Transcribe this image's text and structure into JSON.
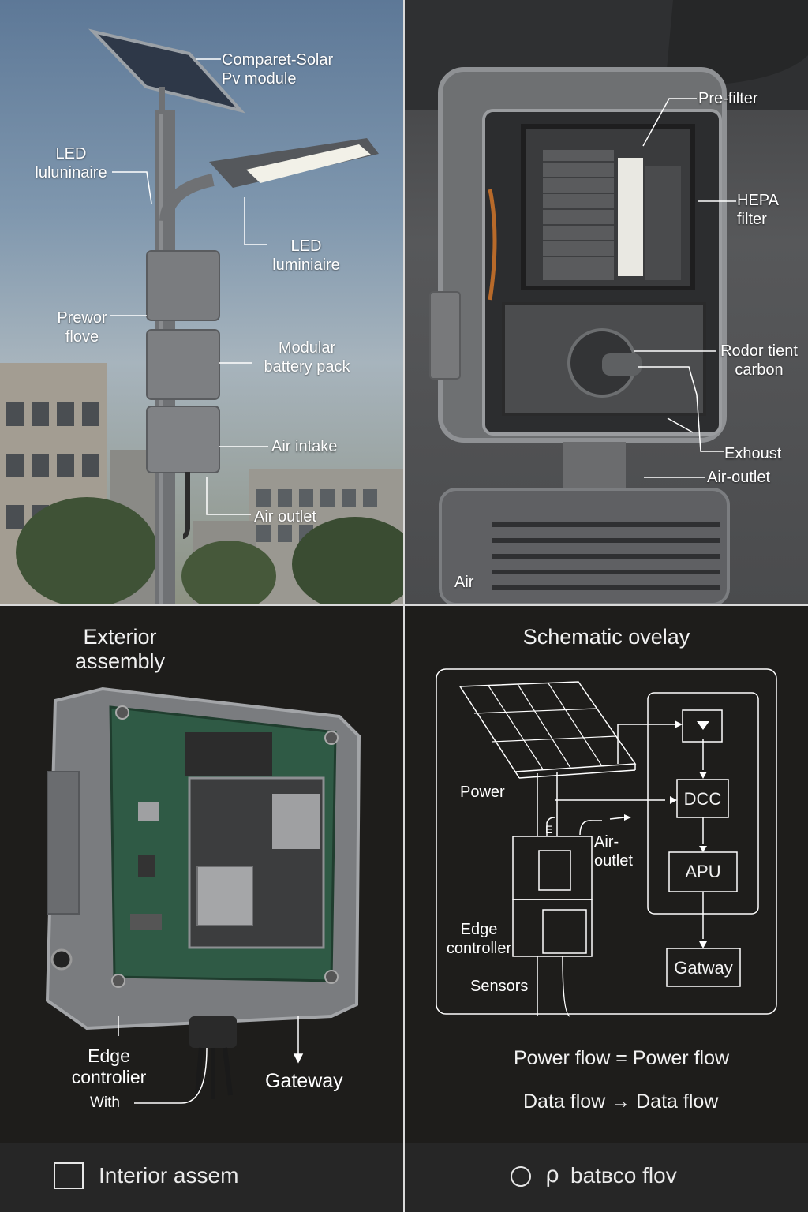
{
  "panel_street": {
    "labels": {
      "solar_pv": "Comparet-Solar\nPv module",
      "led_left": "LED\nluluninaire",
      "led_right": "LED\nluminiaire",
      "power_flow": "Prewor\nflove",
      "battery": "Modular\nbattery pack",
      "air_intake": "Air intake",
      "air_outlet": "Air outlet"
    }
  },
  "panel_interior": {
    "labels": {
      "pre_filter": "Pre-filter",
      "hepa": "HEPA\nfilter",
      "carbon": "Rodor tient\ncarbon",
      "exhaust": "Exhoust",
      "air_outlet": "Air-outlet",
      "air_cut": "Air"
    }
  },
  "panel_exterior": {
    "title": "Exterior\nassembly",
    "labels": {
      "edge_controller": "Edge\ncontrolier",
      "with": "With",
      "gateway": "Gateway"
    }
  },
  "panel_schematic": {
    "title": "Schematic ovelay",
    "labels": {
      "power": "Power",
      "air_outlet": "Air-\noutlet",
      "edge_controller": "Edge\ncontroller",
      "sensors": "Sensors",
      "e_mark": "E"
    },
    "boxes": {
      "dcc": "DCC",
      "apu": "APU",
      "gateway": "Gatway"
    },
    "legend": {
      "power_flow_left": "Power flow",
      "power_flow_right": "Power flow",
      "data_flow_left": "Data flow",
      "data_flow_right": "Data flow"
    }
  },
  "footer": {
    "left": "Interior assem",
    "right": "batʙᴄᴏ flov"
  },
  "colors": {
    "sky_top": "#5d7897",
    "panel_dark": "#1e1d1b",
    "pcb_green": "#2f5a45",
    "metal": "#8d8f92",
    "line_white": "#ffffff"
  }
}
